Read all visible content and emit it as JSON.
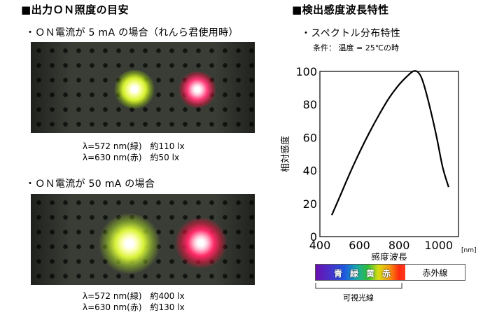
{
  "left": {
    "heading": "■出力ＯＮ照度の目安",
    "section1": {
      "title": "・ＯＮ電流が 5 mA の場合（れんら君使用時）",
      "cap_line1": "λ=572 nm(緑)　約110 lx",
      "cap_line2": "λ=630 nm(赤)　約50 lx"
    },
    "section2": {
      "title": "・ＯＮ電流が 50 mA の場合",
      "cap_line1": "λ=572 nm(緑)　約400 lx",
      "cap_line2": "λ=630 nm(赤)　約130 lx"
    }
  },
  "right": {
    "heading": "■検出感度波長特性",
    "subheading": "・スペクトル分布特性",
    "condition": "条件：  温度 = 25℃の時"
  },
  "chart_data": {
    "type": "line",
    "xlabel": "感度波長",
    "ylabel": "相対感度",
    "x_unit": "[nm]",
    "xlim": [
      400,
      1100
    ],
    "ylim": [
      0,
      100
    ],
    "xticks": [
      400,
      600,
      800,
      1000
    ],
    "yticks": [
      0,
      20,
      40,
      60,
      80,
      100
    ],
    "series": [
      {
        "x": [
          460,
          500,
          550,
          600,
          650,
          700,
          750,
          800,
          840,
          870,
          890,
          910,
          930,
          960,
          990,
          1020,
          1050
        ],
        "y": [
          13,
          24,
          38,
          51,
          63,
          74,
          84,
          92,
          97,
          100,
          100,
          97,
          90,
          76,
          60,
          42,
          30
        ]
      }
    ]
  },
  "spectrum": {
    "colors": [
      "青",
      "緑",
      "黄",
      "赤"
    ],
    "infrared": "赤外線",
    "visible_label": "可視光線",
    "gradient": [
      "#6a0fb0",
      "#1e58e0",
      "#2fbf3a",
      "#d8dc10",
      "#ff2a10"
    ]
  }
}
